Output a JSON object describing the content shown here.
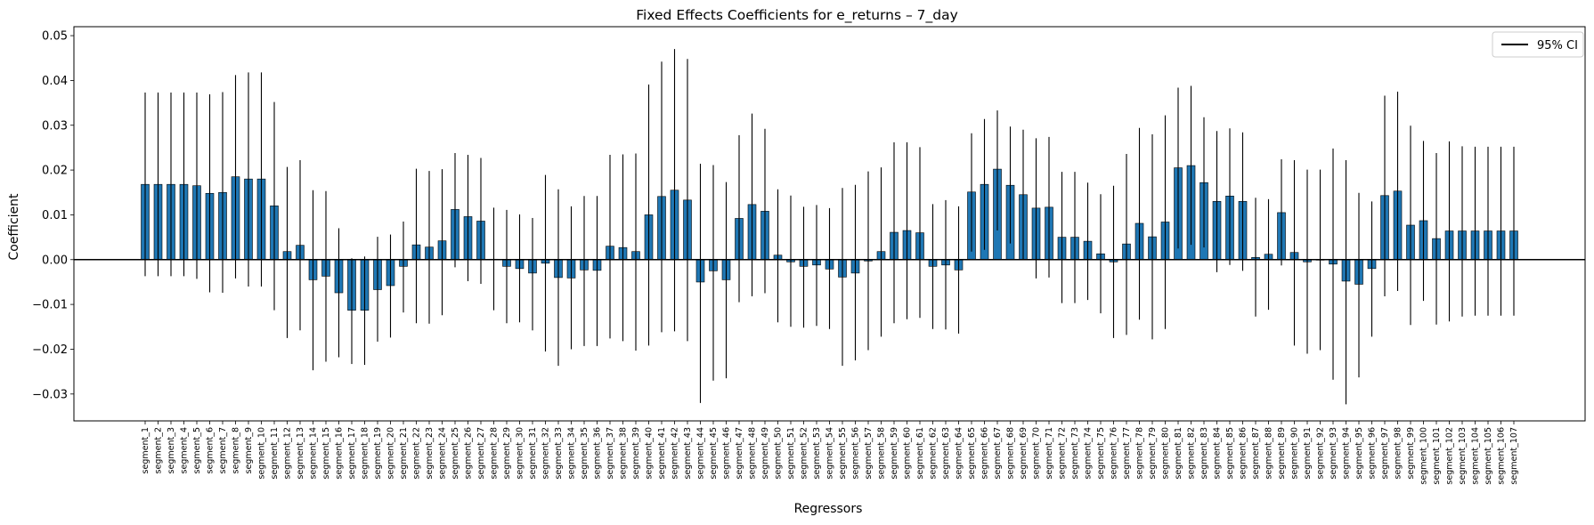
{
  "chart_data": {
    "type": "bar",
    "title": "Fixed Effects Coefficients for e_returns – 7_day",
    "xlabel": "Regressors",
    "ylabel": "Coefficient",
    "ylim": [
      -0.036,
      0.052
    ],
    "yticks": [
      -0.03,
      -0.02,
      -0.01,
      0.0,
      0.01,
      0.02,
      0.03,
      0.04,
      0.05
    ],
    "ytick_labels": [
      "−0.03",
      "−0.02",
      "−0.01",
      "0.00",
      "0.01",
      "0.02",
      "0.03",
      "0.04",
      "0.05"
    ],
    "grid": false,
    "legend": {
      "position": "top-right",
      "entries": [
        "95% CI"
      ]
    },
    "colors": {
      "bar": "#1f77b4",
      "edge": "#000000",
      "ci": "#000000",
      "zero_line": "#000000"
    },
    "categories": [
      "segment_1",
      "segment_2",
      "segment_3",
      "segment_4",
      "segment_5",
      "segment_6",
      "segment_7",
      "segment_8",
      "segment_9",
      "segment_10",
      "segment_11",
      "segment_12",
      "segment_13",
      "segment_14",
      "segment_15",
      "segment_16",
      "segment_17",
      "segment_18",
      "segment_19",
      "segment_20",
      "segment_21",
      "segment_22",
      "segment_23",
      "segment_24",
      "segment_25",
      "segment_26",
      "segment_27",
      "segment_28",
      "segment_29",
      "segment_30",
      "segment_31",
      "segment_32",
      "segment_33",
      "segment_34",
      "segment_35",
      "segment_36",
      "segment_37",
      "segment_38",
      "segment_39",
      "segment_40",
      "segment_41",
      "segment_42",
      "segment_43",
      "segment_44",
      "segment_45",
      "segment_46",
      "segment_47",
      "segment_48",
      "segment_49",
      "segment_50",
      "segment_51",
      "segment_52",
      "segment_53",
      "segment_54",
      "segment_55",
      "segment_56",
      "segment_57",
      "segment_58",
      "segment_59",
      "segment_60",
      "segment_61",
      "segment_62",
      "segment_63",
      "segment_64",
      "segment_65",
      "segment_66",
      "segment_67",
      "segment_68",
      "segment_69",
      "segment_70",
      "segment_71",
      "segment_72",
      "segment_73",
      "segment_74",
      "segment_75",
      "segment_76",
      "segment_77",
      "segment_78",
      "segment_79",
      "segment_80",
      "segment_81",
      "segment_82",
      "segment_83",
      "segment_84",
      "segment_85",
      "segment_86",
      "segment_87",
      "segment_88",
      "segment_89",
      "segment_90",
      "segment_91",
      "segment_92",
      "segment_93",
      "segment_94",
      "segment_95",
      "segment_96",
      "segment_97",
      "segment_98",
      "segment_99",
      "segment_100",
      "segment_101",
      "segment_102",
      "segment_103",
      "segment_104",
      "segment_105",
      "segment_106",
      "segment_107"
    ],
    "values": [
      0.0168,
      0.0168,
      0.0168,
      0.0168,
      0.0165,
      0.0148,
      0.015,
      0.0185,
      0.018,
      0.018,
      0.012,
      0.0018,
      0.0032,
      -0.0045,
      -0.0037,
      -0.0074,
      -0.0113,
      -0.0113,
      -0.0067,
      -0.0058,
      -0.0015,
      0.0033,
      0.0028,
      0.0042,
      0.0112,
      0.0096,
      0.0086,
      0.0001,
      -0.0015,
      -0.002,
      -0.003,
      -0.0008,
      -0.004,
      -0.0041,
      -0.0023,
      -0.0024,
      0.003,
      0.0027,
      0.0018,
      0.01,
      0.0141,
      0.0155,
      0.0133,
      -0.005,
      -0.0025,
      -0.0045,
      0.0092,
      0.0123,
      0.0108,
      0.001,
      -0.0005,
      -0.0015,
      -0.0012,
      -0.0021,
      -0.0039,
      -0.003,
      -0.0003,
      0.0018,
      0.0061,
      0.0065,
      0.006,
      -0.0015,
      -0.0012,
      -0.0023,
      0.0151,
      0.0168,
      0.0202,
      0.0166,
      0.0145,
      0.0115,
      0.0117,
      0.005,
      0.005,
      0.0041,
      0.0013,
      -0.0005,
      0.0035,
      0.0081,
      0.0051,
      0.0084,
      0.0205,
      0.021,
      0.0172,
      0.013,
      0.0142,
      0.013,
      0.0005,
      0.0012,
      0.0105,
      0.0016,
      -0.0005,
      -0.0001,
      -0.001,
      -0.0048,
      -0.0055,
      -0.002,
      0.0143,
      0.0153,
      0.0077,
      0.0087,
      0.0047,
      0.0064,
      0.0064,
      0.0064,
      0.0064,
      0.0064,
      0.0064
    ],
    "ci_lower": [
      -0.0037,
      -0.0037,
      -0.0037,
      -0.0037,
      -0.0043,
      -0.0073,
      -0.0074,
      -0.0042,
      -0.006,
      -0.006,
      -0.0113,
      -0.0175,
      -0.0158,
      -0.0247,
      -0.0228,
      -0.0218,
      -0.0233,
      -0.0235,
      -0.0183,
      -0.0174,
      -0.0118,
      -0.0142,
      -0.0143,
      -0.0124,
      -0.0017,
      -0.0048,
      -0.0054,
      -0.0113,
      -0.0142,
      -0.014,
      -0.0158,
      -0.0205,
      -0.0237,
      -0.02,
      -0.0193,
      -0.0193,
      -0.0176,
      -0.0182,
      -0.0203,
      -0.0192,
      -0.0162,
      -0.016,
      -0.0182,
      -0.032,
      -0.027,
      -0.0265,
      -0.0095,
      -0.0082,
      -0.0075,
      -0.014,
      -0.015,
      -0.0152,
      -0.0148,
      -0.0155,
      -0.0237,
      -0.0225,
      -0.0202,
      -0.0172,
      -0.0142,
      -0.0133,
      -0.013,
      -0.0155,
      -0.0156,
      -0.0165,
      0.0018,
      0.0022,
      0.0065,
      0.0036,
      0.0001,
      -0.0042,
      -0.004,
      -0.0097,
      -0.0097,
      -0.009,
      -0.012,
      -0.0175,
      -0.0168,
      -0.0134,
      -0.0178,
      -0.0155,
      0.0025,
      0.0033,
      0.0027,
      -0.0028,
      -0.0012,
      -0.0025,
      -0.0127,
      -0.0112,
      -0.0013,
      -0.0192,
      -0.021,
      -0.0202,
      -0.0268,
      -0.0323,
      -0.0263,
      -0.0172,
      -0.0082,
      -0.007,
      -0.0146,
      -0.0092,
      -0.0145,
      -0.0138,
      -0.0127,
      -0.0125,
      -0.0125,
      -0.0125,
      -0.0125
    ],
    "ci_upper": [
      0.0373,
      0.0373,
      0.0373,
      0.0373,
      0.0373,
      0.0369,
      0.0374,
      0.0412,
      0.0418,
      0.0418,
      0.0352,
      0.0207,
      0.0222,
      0.0155,
      0.0153,
      0.007,
      0.0003,
      0.0007,
      0.0051,
      0.0056,
      0.0085,
      0.0203,
      0.0198,
      0.0202,
      0.0238,
      0.0234,
      0.0227,
      0.0116,
      0.0111,
      0.0101,
      0.0093,
      0.0189,
      0.0157,
      0.0119,
      0.0142,
      0.0142,
      0.0234,
      0.0235,
      0.0237,
      0.0391,
      0.0442,
      0.047,
      0.0448,
      0.0214,
      0.0211,
      0.0173,
      0.0278,
      0.0326,
      0.0292,
      0.0157,
      0.0143,
      0.0118,
      0.0122,
      0.0115,
      0.016,
      0.0167,
      0.0197,
      0.0206,
      0.0262,
      0.0262,
      0.0251,
      0.0124,
      0.0133,
      0.0119,
      0.0282,
      0.0314,
      0.0333,
      0.0297,
      0.029,
      0.0271,
      0.0274,
      0.0196,
      0.0196,
      0.0172,
      0.0146,
      0.0165,
      0.0236,
      0.0294,
      0.028,
      0.0322,
      0.0384,
      0.0388,
      0.0318,
      0.0287,
      0.0293,
      0.0284,
      0.0138,
      0.0135,
      0.0224,
      0.0222,
      0.0201,
      0.0201,
      0.0248,
      0.0222,
      0.0149,
      0.013,
      0.0366,
      0.0375,
      0.0299,
      0.0265,
      0.0238,
      0.0264,
      0.0253,
      0.0252,
      0.0252,
      0.0252,
      0.0252
    ]
  }
}
